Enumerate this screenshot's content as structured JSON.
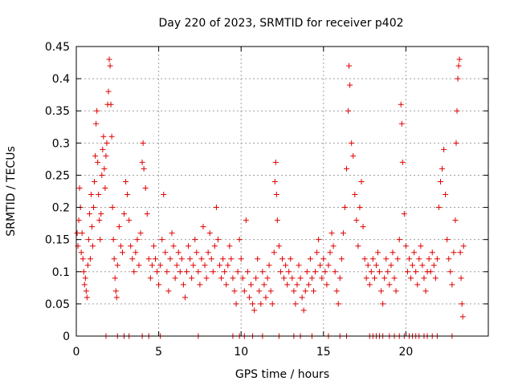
{
  "chart_data": {
    "type": "scatter",
    "title": "Day 220 of 2023, SRMTID for receiver p402",
    "xlabel": "GPS time / hours",
    "ylabel": "SRMTID / TECUs",
    "xlim": [
      0,
      25
    ],
    "ylim": [
      0,
      0.45
    ],
    "xticks": [
      0,
      5,
      10,
      15,
      20
    ],
    "xtick_labels": [
      "0",
      "5",
      "10",
      "15",
      "20"
    ],
    "yticks": [
      0,
      0.05,
      0.1,
      0.15,
      0.2,
      0.25,
      0.3,
      0.35,
      0.4,
      0.45
    ],
    "ytick_labels": [
      "0",
      "0.05",
      "0.1",
      "0.15",
      "0.2",
      "0.25",
      "0.3",
      "0.35",
      "0.4",
      "0.45"
    ],
    "grid": true,
    "marker": "+",
    "color": "#e00000",
    "series": [
      {
        "name": "SRMTID",
        "points": [
          [
            0.05,
            0.16
          ],
          [
            0.1,
            0.14
          ],
          [
            0.15,
            0.18
          ],
          [
            0.2,
            0.23
          ],
          [
            0.25,
            0.2
          ],
          [
            0.3,
            0.13
          ],
          [
            0.35,
            0.16
          ],
          [
            0.4,
            0.12
          ],
          [
            0.45,
            0.1
          ],
          [
            0.5,
            0.08
          ],
          [
            0.55,
            0.09
          ],
          [
            0.6,
            0.07
          ],
          [
            0.65,
            0.06
          ],
          [
            0.7,
            0.11
          ],
          [
            0.75,
            0.15
          ],
          [
            0.8,
            0.19
          ],
          [
            0.85,
            0.12
          ],
          [
            0.9,
            0.22
          ],
          [
            0.95,
            0.17
          ],
          [
            1.0,
            0.14
          ],
          [
            1.05,
            0.2
          ],
          [
            1.1,
            0.24
          ],
          [
            1.15,
            0.28
          ],
          [
            1.2,
            0.33
          ],
          [
            1.25,
            0.35
          ],
          [
            1.3,
            0.27
          ],
          [
            1.35,
            0.22
          ],
          [
            1.4,
            0.18
          ],
          [
            1.45,
            0.15
          ],
          [
            1.5,
            0.19
          ],
          [
            1.55,
            0.25
          ],
          [
            1.6,
            0.29
          ],
          [
            1.65,
            0.31
          ],
          [
            1.7,
            0.26
          ],
          [
            1.75,
            0.23
          ],
          [
            1.8,
            0.28
          ],
          [
            1.85,
            0.3
          ],
          [
            1.9,
            0.36
          ],
          [
            1.95,
            0.38
          ],
          [
            2.0,
            0.43
          ],
          [
            2.05,
            0.42
          ],
          [
            2.1,
            0.36
          ],
          [
            2.15,
            0.31
          ],
          [
            2.2,
            0.2
          ],
          [
            2.25,
            0.15
          ],
          [
            2.3,
            0.12
          ],
          [
            2.35,
            0.09
          ],
          [
            2.4,
            0.07
          ],
          [
            2.45,
            0.06
          ],
          [
            2.5,
            0.11
          ],
          [
            2.6,
            0.17
          ],
          [
            2.7,
            0.14
          ],
          [
            2.8,
            0.13
          ],
          [
            2.9,
            0.19
          ],
          [
            3.0,
            0.24
          ],
          [
            3.1,
            0.22
          ],
          [
            3.2,
            0.18
          ],
          [
            3.3,
            0.14
          ],
          [
            3.4,
            0.12
          ],
          [
            3.5,
            0.1
          ],
          [
            3.6,
            0.13
          ],
          [
            3.7,
            0.15
          ],
          [
            3.8,
            0.11
          ],
          [
            3.9,
            0.16
          ],
          [
            4.0,
            0.27
          ],
          [
            4.05,
            0.3
          ],
          [
            4.1,
            0.26
          ],
          [
            4.2,
            0.23
          ],
          [
            4.3,
            0.19
          ],
          [
            4.4,
            0.12
          ],
          [
            4.5,
            0.09
          ],
          [
            4.6,
            0.11
          ],
          [
            4.7,
            0.14
          ],
          [
            4.8,
            0.12
          ],
          [
            4.9,
            0.1
          ],
          [
            5.0,
            0.08
          ],
          [
            5.1,
            0.11
          ],
          [
            5.2,
            0.15
          ],
          [
            5.3,
            0.22
          ],
          [
            5.4,
            0.13
          ],
          [
            5.5,
            0.1
          ],
          [
            5.6,
            0.07
          ],
          [
            5.7,
            0.12
          ],
          [
            5.8,
            0.16
          ],
          [
            5.9,
            0.14
          ],
          [
            6.0,
            0.09
          ],
          [
            6.1,
            0.11
          ],
          [
            6.2,
            0.13
          ],
          [
            6.3,
            0.1
          ],
          [
            6.4,
            0.12
          ],
          [
            6.5,
            0.08
          ],
          [
            6.6,
            0.06
          ],
          [
            6.7,
            0.1
          ],
          [
            6.8,
            0.14
          ],
          [
            6.9,
            0.12
          ],
          [
            7.0,
            0.09
          ],
          [
            7.1,
            0.11
          ],
          [
            7.2,
            0.15
          ],
          [
            7.3,
            0.13
          ],
          [
            7.4,
            0.1
          ],
          [
            7.5,
            0.08
          ],
          [
            7.6,
            0.12
          ],
          [
            7.7,
            0.17
          ],
          [
            7.8,
            0.11
          ],
          [
            7.9,
            0.09
          ],
          [
            8.0,
            0.13
          ],
          [
            8.1,
            0.16
          ],
          [
            8.2,
            0.12
          ],
          [
            8.3,
            0.1
          ],
          [
            8.4,
            0.14
          ],
          [
            8.5,
            0.2
          ],
          [
            8.6,
            0.15
          ],
          [
            8.7,
            0.11
          ],
          [
            8.8,
            0.09
          ],
          [
            8.9,
            0.12
          ],
          [
            9.0,
            0.1
          ],
          [
            9.1,
            0.08
          ],
          [
            9.2,
            0.11
          ],
          [
            9.3,
            0.14
          ],
          [
            9.4,
            0.12
          ],
          [
            9.5,
            0.09
          ],
          [
            9.6,
            0.07
          ],
          [
            9.7,
            0.05
          ],
          [
            9.8,
            0.1
          ],
          [
            9.9,
            0.15
          ],
          [
            10.0,
            0.12
          ],
          [
            10.1,
            0.09
          ],
          [
            10.2,
            0.07
          ],
          [
            10.3,
            0.18
          ],
          [
            10.4,
            0.1
          ],
          [
            10.5,
            0.06
          ],
          [
            10.6,
            0.08
          ],
          [
            10.7,
            0.05
          ],
          [
            10.8,
            0.04
          ],
          [
            10.9,
            0.09
          ],
          [
            11.0,
            0.12
          ],
          [
            11.1,
            0.07
          ],
          [
            11.2,
            0.05
          ],
          [
            11.3,
            0.1
          ],
          [
            11.4,
            0.08
          ],
          [
            11.5,
            0.06
          ],
          [
            11.6,
            0.09
          ],
          [
            11.7,
            0.11
          ],
          [
            11.8,
            0.07
          ],
          [
            11.9,
            0.05
          ],
          [
            12.0,
            0.13
          ],
          [
            12.05,
            0.24
          ],
          [
            12.1,
            0.27
          ],
          [
            12.15,
            0.22
          ],
          [
            12.2,
            0.18
          ],
          [
            12.3,
            0.14
          ],
          [
            12.4,
            0.1
          ],
          [
            12.5,
            0.12
          ],
          [
            12.6,
            0.09
          ],
          [
            12.7,
            0.11
          ],
          [
            12.8,
            0.08
          ],
          [
            12.9,
            0.1
          ],
          [
            13.0,
            0.12
          ],
          [
            13.1,
            0.09
          ],
          [
            13.2,
            0.07
          ],
          [
            13.3,
            0.05
          ],
          [
            13.4,
            0.08
          ],
          [
            13.5,
            0.11
          ],
          [
            13.6,
            0.09
          ],
          [
            13.7,
            0.06
          ],
          [
            13.8,
            0.04
          ],
          [
            13.9,
            0.07
          ],
          [
            14.0,
            0.1
          ],
          [
            14.1,
            0.08
          ],
          [
            14.2,
            0.12
          ],
          [
            14.3,
            0.09
          ],
          [
            14.4,
            0.07
          ],
          [
            14.5,
            0.1
          ],
          [
            14.6,
            0.13
          ],
          [
            14.7,
            0.15
          ],
          [
            14.8,
            0.11
          ],
          [
            14.9,
            0.09
          ],
          [
            15.0,
            0.12
          ],
          [
            15.1,
            0.1
          ],
          [
            15.2,
            0.08
          ],
          [
            15.3,
            0.11
          ],
          [
            15.4,
            0.13
          ],
          [
            15.5,
            0.16
          ],
          [
            15.6,
            0.14
          ],
          [
            15.7,
            0.1
          ],
          [
            15.8,
            0.07
          ],
          [
            15.9,
            0.05
          ],
          [
            16.0,
            0.09
          ],
          [
            16.1,
            0.12
          ],
          [
            16.2,
            0.16
          ],
          [
            16.3,
            0.2
          ],
          [
            16.4,
            0.26
          ],
          [
            16.5,
            0.35
          ],
          [
            16.55,
            0.42
          ],
          [
            16.6,
            0.39
          ],
          [
            16.7,
            0.3
          ],
          [
            16.8,
            0.28
          ],
          [
            16.9,
            0.22
          ],
          [
            17.0,
            0.18
          ],
          [
            17.1,
            0.14
          ],
          [
            17.2,
            0.2
          ],
          [
            17.3,
            0.24
          ],
          [
            17.4,
            0.17
          ],
          [
            17.5,
            0.12
          ],
          [
            17.6,
            0.09
          ],
          [
            17.7,
            0.11
          ],
          [
            17.8,
            0.08
          ],
          [
            17.9,
            0.1
          ],
          [
            18.0,
            0.12
          ],
          [
            18.1,
            0.09
          ],
          [
            18.2,
            0.11
          ],
          [
            18.3,
            0.13
          ],
          [
            18.4,
            0.1
          ],
          [
            18.5,
            0.07
          ],
          [
            18.6,
            0.05
          ],
          [
            18.7,
            0.09
          ],
          [
            18.8,
            0.12
          ],
          [
            18.9,
            0.1
          ],
          [
            19.0,
            0.08
          ],
          [
            19.1,
            0.11
          ],
          [
            19.2,
            0.13
          ],
          [
            19.3,
            0.09
          ],
          [
            19.4,
            0.07
          ],
          [
            19.5,
            0.12
          ],
          [
            19.6,
            0.15
          ],
          [
            19.7,
            0.36
          ],
          [
            19.75,
            0.33
          ],
          [
            19.8,
            0.27
          ],
          [
            19.9,
            0.19
          ],
          [
            20.0,
            0.14
          ],
          [
            20.1,
            0.1
          ],
          [
            20.2,
            0.12
          ],
          [
            20.3,
            0.09
          ],
          [
            20.4,
            0.11
          ],
          [
            20.5,
            0.13
          ],
          [
            20.6,
            0.1
          ],
          [
            20.7,
            0.08
          ],
          [
            20.8,
            0.12
          ],
          [
            20.9,
            0.14
          ],
          [
            21.0,
            0.11
          ],
          [
            21.1,
            0.09
          ],
          [
            21.2,
            0.07
          ],
          [
            21.3,
            0.1
          ],
          [
            21.4,
            0.12
          ],
          [
            21.5,
            0.1
          ],
          [
            21.6,
            0.13
          ],
          [
            21.7,
            0.11
          ],
          [
            21.8,
            0.09
          ],
          [
            21.9,
            0.12
          ],
          [
            22.0,
            0.2
          ],
          [
            22.1,
            0.24
          ],
          [
            22.2,
            0.26
          ],
          [
            22.3,
            0.29
          ],
          [
            22.4,
            0.22
          ],
          [
            22.5,
            0.15
          ],
          [
            22.6,
            0.12
          ],
          [
            22.7,
            0.1
          ],
          [
            22.8,
            0.08
          ],
          [
            22.9,
            0.13
          ],
          [
            23.0,
            0.18
          ],
          [
            23.05,
            0.3
          ],
          [
            23.1,
            0.35
          ],
          [
            23.15,
            0.4
          ],
          [
            23.2,
            0.42
          ],
          [
            23.25,
            0.43
          ],
          [
            23.3,
            0.13
          ],
          [
            23.35,
            0.09
          ],
          [
            23.4,
            0.05
          ],
          [
            23.45,
            0.03
          ],
          [
            23.5,
            0.14
          ],
          [
            1.8,
            0.0
          ],
          [
            2.5,
            0.0
          ],
          [
            2.9,
            0.0
          ],
          [
            3.2,
            0.0
          ],
          [
            4.0,
            0.0
          ],
          [
            4.4,
            0.0
          ],
          [
            5.1,
            0.0
          ],
          [
            7.4,
            0.0
          ],
          [
            9.5,
            0.0
          ],
          [
            9.9,
            0.0
          ],
          [
            10.2,
            0.0
          ],
          [
            10.7,
            0.0
          ],
          [
            11.3,
            0.0
          ],
          [
            12.3,
            0.0
          ],
          [
            13.2,
            0.0
          ],
          [
            13.6,
            0.0
          ],
          [
            14.3,
            0.0
          ],
          [
            15.3,
            0.0
          ],
          [
            16.0,
            0.0
          ],
          [
            16.4,
            0.0
          ],
          [
            17.8,
            0.0
          ],
          [
            18.0,
            0.0
          ],
          [
            18.2,
            0.0
          ],
          [
            18.4,
            0.0
          ],
          [
            18.6,
            0.0
          ],
          [
            19.0,
            0.0
          ],
          [
            19.3,
            0.0
          ],
          [
            19.6,
            0.0
          ],
          [
            19.9,
            0.0
          ],
          [
            20.2,
            0.0
          ],
          [
            20.4,
            0.0
          ],
          [
            20.6,
            0.0
          ],
          [
            20.8,
            0.0
          ],
          [
            21.1,
            0.0
          ],
          [
            21.3,
            0.0
          ],
          [
            21.6,
            0.0
          ],
          [
            21.9,
            0.0
          ],
          [
            22.8,
            0.0
          ]
        ]
      }
    ]
  }
}
